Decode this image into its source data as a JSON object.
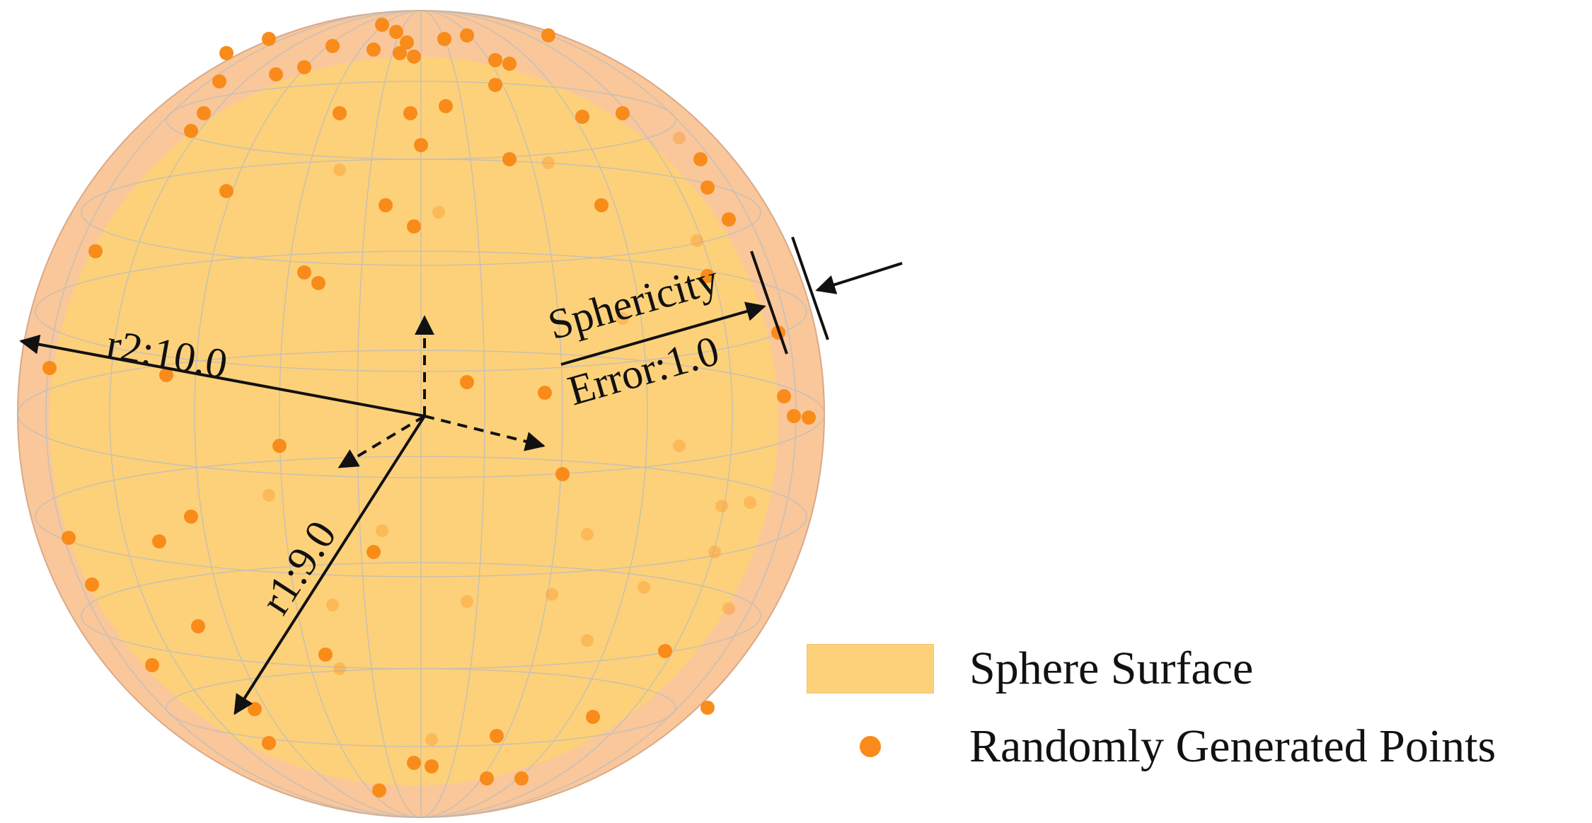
{
  "annotations": {
    "r2": "r2:10.0",
    "r1": "r1:9.0",
    "sphericity": "Sphericity",
    "error": "Error:1.0"
  },
  "legend": {
    "surface_label": "Sphere Surface",
    "points_label": "Randomly Generated Points"
  },
  "colors": {
    "outer_shell": "#f9c79a",
    "inner_sphere": "#fdd17a",
    "points": "#f98b1a",
    "grid": "#bdbdbd",
    "arrows": "#111111"
  }
}
